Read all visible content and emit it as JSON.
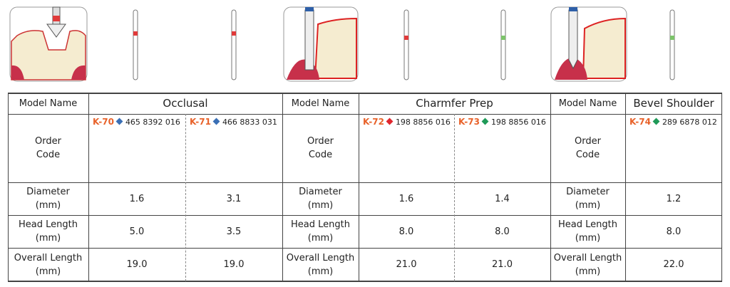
{
  "groups": [
    {
      "model_name_label": "Model Name",
      "title": "Occlusal",
      "row_labels": [
        "Order\nCode",
        "Diameter\n(mm)",
        "Head Length\n(mm)",
        "Overall Length\n(mm)"
      ],
      "products": [
        {
          "code": "K-70",
          "diamond_color": "#3a6fb5",
          "band_color": "#e03a3a",
          "order": "465 8392 016",
          "diameter": "1.6",
          "head_length": "5.0",
          "overall_length": "19.0"
        },
        {
          "code": "K-71",
          "diamond_color": "#3a6fb5",
          "band_color": "#e03a3a",
          "order": "466 8833 031",
          "diameter": "3.1",
          "head_length": "3.5",
          "overall_length": "19.0"
        }
      ]
    },
    {
      "model_name_label": "Model Name",
      "title": "Charmfer Prep",
      "row_labels": [
        "Order\nCode",
        "Diameter\n(mm)",
        "Head Length\n(mm)",
        "Overall Length\n(mm)"
      ],
      "products": [
        {
          "code": "K-72",
          "diamond_color": "#e0262e",
          "band_color": "#e03a3a",
          "order": "198 8856 016",
          "diameter": "1.6",
          "head_length": "8.0",
          "overall_length": "21.0"
        },
        {
          "code": "K-73",
          "diamond_color": "#1f9a58",
          "band_color": "#7cc46a",
          "order": "198 8856 016",
          "diameter": "1.4",
          "head_length": "8.0",
          "overall_length": "21.0"
        }
      ]
    },
    {
      "model_name_label": "Model Name",
      "title": "Bevel Shoulder",
      "row_labels": [
        "Order\nCode",
        "Diameter\n(mm)",
        "Head Length\n(mm)",
        "Overall Length\n(mm)"
      ],
      "products": [
        {
          "code": "K-74",
          "diamond_color": "#1f9a58",
          "band_color": "#7cc46a",
          "order": "289 6878 012",
          "diameter": "1.2",
          "head_length": "8.0",
          "overall_length": "22.0"
        }
      ]
    }
  ]
}
